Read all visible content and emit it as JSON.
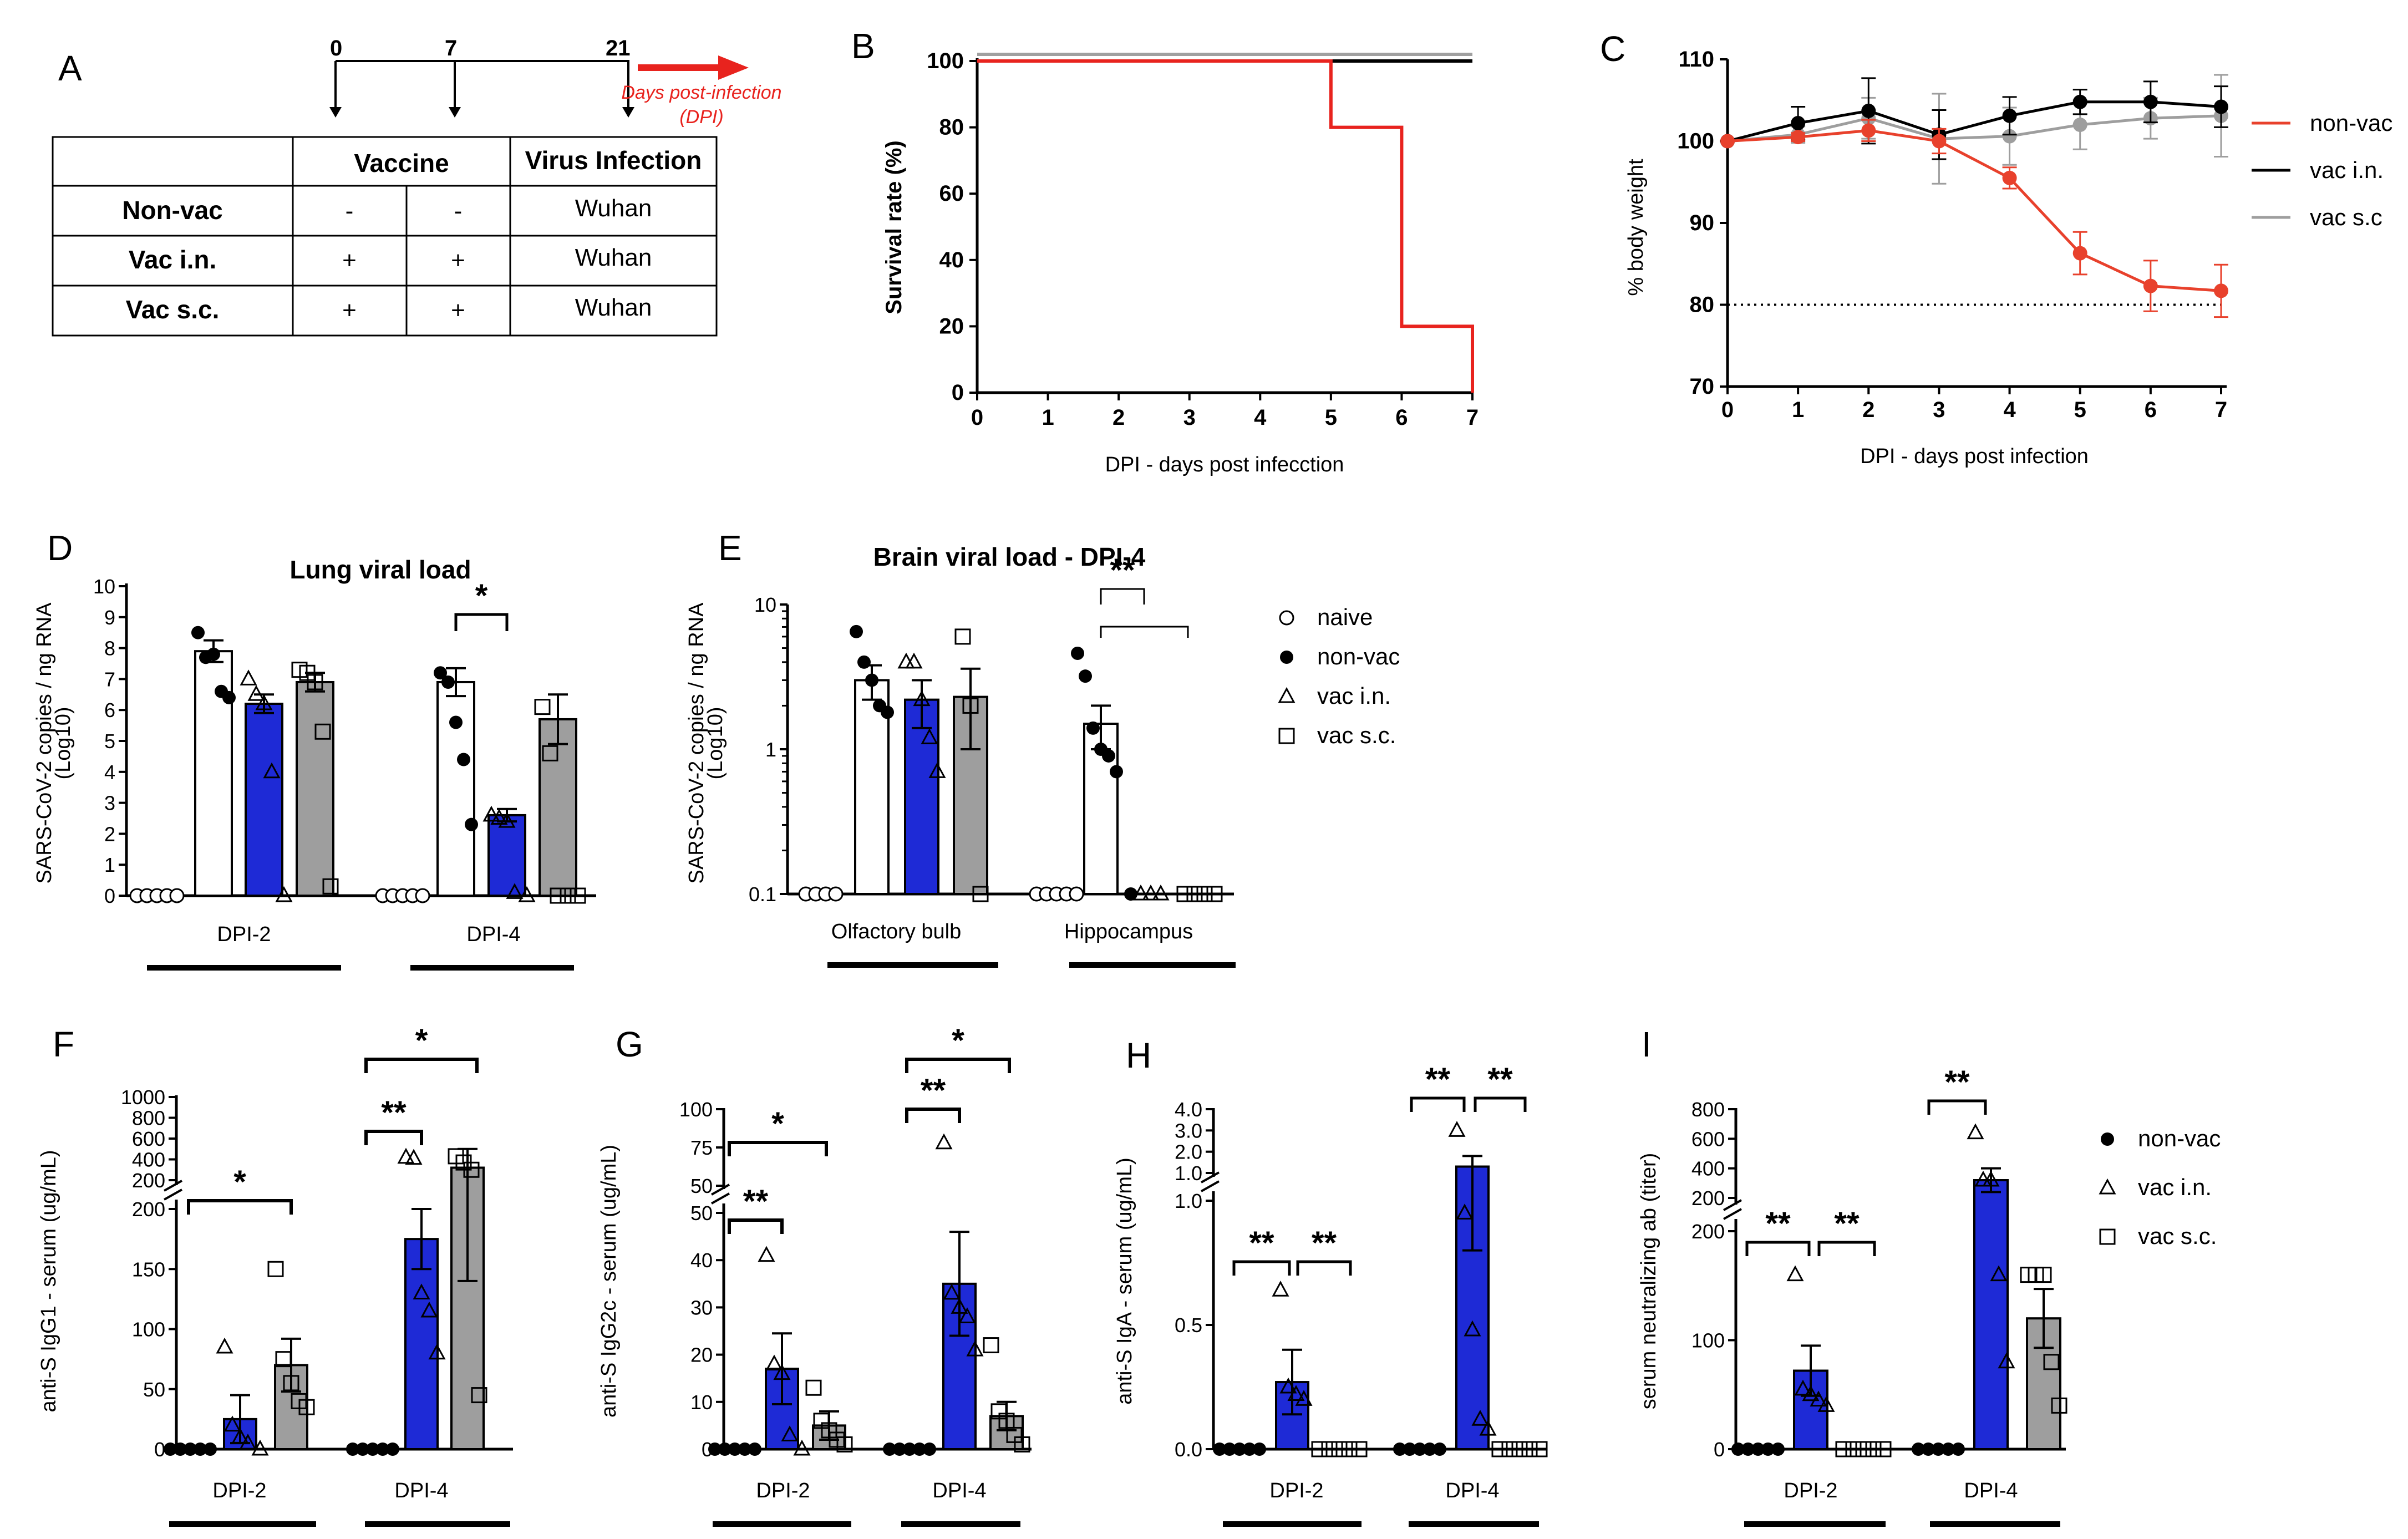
{
  "panel_letters": [
    "A",
    "B",
    "C",
    "D",
    "E",
    "F",
    "G",
    "H",
    "I"
  ],
  "colors": {
    "nonvac": "#e8412c",
    "vac_in": "#1e2ad6",
    "vac_sc": "#9e9e9e",
    "black": "#000000",
    "red_arrow": "#e8231e",
    "surv_gray": "#a0a0a0"
  },
  "panelA": {
    "timeline_days": [
      "0",
      "7",
      "21"
    ],
    "arrow_label_1": "Days post-infection",
    "arrow_label_2": "(DPI)",
    "table_headers": [
      "",
      "Vaccine",
      "Virus Infection"
    ],
    "rows": [
      {
        "name": "Non-vac",
        "v1": "-",
        "v2": "-",
        "virus": "Wuhan"
      },
      {
        "name": "Vac i.n.",
        "v1": "+",
        "v2": "+",
        "virus": "Wuhan"
      },
      {
        "name": "Vac s.c.",
        "v1": "+",
        "v2": "+",
        "virus": "Wuhan"
      }
    ]
  },
  "chart_data": [
    {
      "panel": "B",
      "type": "line",
      "title": "",
      "xlabel": "DPI - days post infecction",
      "ylabel": "Survival rate (%)",
      "xlim": [
        0,
        7
      ],
      "ylim": [
        0,
        100
      ],
      "x_ticks": [
        "0",
        "1",
        "2",
        "3",
        "4",
        "5",
        "6",
        "7"
      ],
      "y_ticks": [
        "0",
        "20",
        "40",
        "60",
        "80",
        "100"
      ],
      "series": [
        {
          "name": "vac s.c",
          "step": true,
          "x": [
            0,
            7
          ],
          "y": [
            102,
            102
          ],
          "color": "#a0a0a0"
        },
        {
          "name": "vac i.n.",
          "step": true,
          "x": [
            0,
            5,
            7
          ],
          "y": [
            100,
            100,
            100
          ],
          "color": "#000000"
        },
        {
          "name": "non-vac",
          "step": true,
          "x": [
            0,
            5,
            6,
            7,
            7
          ],
          "y": [
            100,
            80,
            20,
            20,
            0
          ],
          "color": "#e8231e"
        }
      ]
    },
    {
      "panel": "C",
      "type": "line",
      "xlabel": "DPI - days post infection",
      "ylabel": "% body weight",
      "xlim": [
        0,
        7
      ],
      "ylim": [
        70,
        110
      ],
      "threshold": 80,
      "x_ticks": [
        "0",
        "1",
        "2",
        "3",
        "4",
        "5",
        "6",
        "7"
      ],
      "y_ticks": [
        "70",
        "80",
        "90",
        "100",
        "110"
      ],
      "legend": [
        "non-vac",
        "vac i.n.",
        "vac s.c"
      ],
      "series": [
        {
          "name": "non-vac",
          "color": "#e8412c",
          "x": [
            0,
            1,
            2,
            3,
            4,
            5,
            6,
            7
          ],
          "y": [
            100,
            100.5,
            101.3,
            100,
            95.5,
            86.3,
            82.3,
            81.7
          ],
          "err": [
            0,
            0.5,
            1.3,
            1.5,
            1.3,
            2.6,
            3.1,
            3.2
          ]
        },
        {
          "name": "vac i.n.",
          "color": "#000000",
          "x": [
            0,
            1,
            2,
            3,
            4,
            5,
            6,
            7
          ],
          "y": [
            100,
            102.2,
            103.7,
            100.8,
            103.1,
            104.8,
            104.8,
            104.2
          ],
          "err": [
            0,
            2,
            4,
            3,
            2.3,
            1.5,
            2.5,
            2.5
          ]
        },
        {
          "name": "vac s.c",
          "color": "#9e9e9e",
          "x": [
            0,
            1,
            2,
            3,
            4,
            5,
            6,
            7
          ],
          "y": [
            100,
            100.8,
            102.8,
            100.3,
            100.6,
            102,
            102.8,
            103.1
          ],
          "err": [
            0,
            1,
            2.5,
            5.5,
            3.5,
            3,
            2.5,
            5
          ]
        }
      ]
    },
    {
      "panel": "D",
      "type": "bar",
      "title": "Lung viral load",
      "ylabel_1": "SARS-CoV-2 copies / ng RNA",
      "ylabel_2": "(Log10)",
      "ylim": [
        0,
        10
      ],
      "y_ticks": [
        "0",
        "1",
        "2",
        "3",
        "4",
        "5",
        "6",
        "7",
        "8",
        "9",
        "10"
      ],
      "groups": [
        "DPI-2",
        "DPI-4"
      ],
      "series": [
        {
          "name": "naive",
          "values": [
            0,
            0
          ],
          "err": [
            0,
            0
          ]
        },
        {
          "name": "non-vac",
          "values": [
            7.9,
            6.9
          ],
          "err": [
            0.35,
            0.45
          ]
        },
        {
          "name": "vac i.n.",
          "values": [
            6.2,
            2.6
          ],
          "err": [
            0.3,
            0.2
          ]
        },
        {
          "name": "vac s.c.",
          "values": [
            6.9,
            5.7
          ],
          "err": [
            0.3,
            0.8
          ]
        }
      ],
      "points": [
        [
          [
            0,
            0,
            0,
            0,
            0
          ],
          [
            8.5,
            7.7,
            7.8,
            6.6,
            6.4
          ],
          [
            7,
            6.5,
            6.2,
            4,
            0
          ],
          [
            7.3,
            7.2,
            6.9,
            5.3,
            0.3
          ]
        ],
        [
          [
            0,
            0,
            0,
            0,
            0
          ],
          [
            7.2,
            6.9,
            5.6,
            4.4,
            2.3
          ],
          [
            2.6,
            2.5,
            2.4,
            0.1,
            0
          ],
          [
            6.1,
            4.6,
            0,
            0,
            0
          ]
        ]
      ],
      "annotations": [
        "*"
      ]
    },
    {
      "panel": "E",
      "type": "bar",
      "title": "Brain viral load - DPI-4",
      "yscale": "log",
      "ylabel_1": "SARS-CoV-2 copies / ng RNA",
      "ylabel_2": "(Log10)",
      "ylim": [
        0.1,
        10
      ],
      "y_ticks": [
        "0.1",
        "1",
        "10"
      ],
      "groups": [
        "Olfactory bulb",
        "Hippocampus"
      ],
      "series": [
        {
          "name": "naive",
          "values": [
            0.1,
            0.1
          ],
          "err": [
            0,
            0
          ]
        },
        {
          "name": "non-vac",
          "values": [
            3,
            1.5
          ],
          "err": [
            0.8,
            0.5
          ]
        },
        {
          "name": "vac i.n.",
          "values": [
            2.2,
            0.1
          ],
          "err": [
            0.8,
            0
          ]
        },
        {
          "name": "vac s.c.",
          "values": [
            2.3,
            0.1
          ],
          "err": [
            1.3,
            0
          ]
        }
      ],
      "points": [
        [
          [
            0.1,
            0.1,
            0.1,
            0.1
          ],
          [
            6.5,
            4,
            3,
            2,
            1.8
          ],
          [
            4,
            4,
            2.2,
            1.2,
            0.7
          ],
          [
            6,
            2,
            0.1
          ]
        ],
        [
          [
            0.1,
            0.1,
            0.1,
            0.1,
            0.1
          ],
          [
            4.6,
            3.2,
            1.4,
            1,
            0.9,
            0.7,
            0.1
          ],
          [
            0.1,
            0.1,
            0.1
          ],
          [
            0.1,
            0.1,
            0.1,
            0.1
          ]
        ]
      ],
      "legend": [
        "naive",
        "non-vac",
        "vac i.n.",
        "vac s.c."
      ],
      "annotations": [
        "**"
      ]
    },
    {
      "panel": "F",
      "type": "bar",
      "ylabel": "anti-S IgG1 - serum (ug/mL)",
      "y_ticks_lower": [
        "0",
        "50",
        "100",
        "150",
        "200"
      ],
      "y_ticks_upper": [
        "200",
        "400",
        "600",
        "800",
        "1000"
      ],
      "groups": [
        "DPI-2",
        "DPI-4"
      ],
      "series": [
        {
          "name": "non-vac",
          "values": [
            0,
            0
          ],
          "err": [
            0,
            0
          ]
        },
        {
          "name": "vac i.n.",
          "values": [
            25,
            175
          ],
          "err": [
            20,
            25
          ]
        },
        {
          "name": "vac s.c.",
          "values": [
            70,
            320
          ],
          "err": [
            22,
            180
          ]
        }
      ],
      "points": [
        [
          [
            0,
            0,
            0,
            0,
            0
          ],
          [
            85,
            20,
            10,
            5,
            0
          ],
          [
            150,
            75,
            55,
            40,
            35
          ]
        ],
        [
          [
            0,
            0,
            0,
            0,
            0
          ],
          [
            420,
            410,
            130,
            115,
            80
          ],
          [
            430,
            370,
            300,
            45
          ]
        ]
      ],
      "annotations": [
        "*",
        "**",
        "*"
      ]
    },
    {
      "panel": "G",
      "type": "bar",
      "ylabel": "anti-S IgG2c - serum (ug/mL)",
      "y_ticks_lower": [
        "0",
        "10",
        "20",
        "30",
        "40",
        "50"
      ],
      "y_ticks_upper": [
        "50",
        "75",
        "100"
      ],
      "groups": [
        "DPI-2",
        "DPI-4"
      ],
      "series": [
        {
          "name": "non-vac",
          "values": [
            0,
            0
          ],
          "err": [
            0,
            0
          ]
        },
        {
          "name": "vac i.n.",
          "values": [
            17,
            35
          ],
          "err": [
            7.5,
            11
          ]
        },
        {
          "name": "vac s.c.",
          "values": [
            5,
            7
          ],
          "err": [
            3,
            3
          ]
        }
      ],
      "points": [
        [
          [
            0,
            0,
            0,
            0,
            0
          ],
          [
            41,
            18,
            16,
            3,
            0
          ],
          [
            13,
            6,
            4,
            2,
            1
          ]
        ],
        [
          [
            0,
            0,
            0,
            0,
            0
          ],
          [
            78,
            33,
            30,
            28,
            21
          ],
          [
            22,
            8,
            6,
            3,
            1
          ]
        ]
      ],
      "annotations": [
        "**",
        "*",
        "**",
        "*"
      ]
    },
    {
      "panel": "H",
      "type": "bar",
      "ylabel": "anti-S IgA - serum (ug/mL)",
      "y_ticks_lower": [
        "0.0",
        "0.5",
        "1.0"
      ],
      "y_ticks_upper": [
        "1.0",
        "2.0",
        "3.0",
        "4.0"
      ],
      "groups": [
        "DPI-2",
        "DPI-4"
      ],
      "series": [
        {
          "name": "non-vac",
          "values": [
            0,
            0
          ],
          "err": [
            0,
            0
          ]
        },
        {
          "name": "vac i.n.",
          "values": [
            0.27,
            1.3
          ],
          "err": [
            0.13,
            0.5
          ]
        },
        {
          "name": "vac s.c.",
          "values": [
            0,
            0
          ],
          "err": [
            0,
            0
          ]
        }
      ],
      "points": [
        [
          [
            0,
            0,
            0,
            0,
            0
          ],
          [
            0.64,
            0.25,
            0.22,
            0.2
          ],
          [
            0,
            0,
            0,
            0,
            0
          ]
        ],
        [
          [
            0,
            0,
            0,
            0,
            0
          ],
          [
            3,
            0.95,
            0.48,
            0.12,
            0.08
          ],
          [
            0,
            0,
            0,
            0,
            0
          ]
        ]
      ],
      "annotations": [
        "**",
        "**",
        "**",
        "**"
      ]
    },
    {
      "panel": "I",
      "type": "bar",
      "ylabel": "serum neutralizing ab (titer)",
      "y_ticks_lower": [
        "0",
        "100",
        "200"
      ],
      "y_ticks_upper": [
        "200",
        "400",
        "600",
        "800"
      ],
      "groups": [
        "DPI-2",
        "DPI-4"
      ],
      "series": [
        {
          "name": "non-vac",
          "values": [
            0,
            0
          ],
          "err": [
            0,
            0
          ]
        },
        {
          "name": "vac i.n.",
          "values": [
            72,
            320
          ],
          "err": [
            23,
            80
          ]
        },
        {
          "name": "vac s.c.",
          "values": [
            0,
            120
          ],
          "err": [
            0,
            27
          ]
        }
      ],
      "points": [
        [
          [
            0,
            0,
            0,
            0,
            0
          ],
          [
            160,
            55,
            50,
            45,
            40
          ],
          [
            0,
            0,
            0,
            0,
            0
          ]
        ],
        [
          [
            0,
            0,
            0,
            0,
            0
          ],
          [
            640,
            320,
            320,
            160,
            80
          ],
          [
            160,
            160,
            160,
            80,
            40
          ]
        ]
      ],
      "legend": [
        "non-vac",
        "vac i.n.",
        "vac s.c."
      ],
      "annotations": [
        "**",
        "**",
        "**"
      ]
    }
  ]
}
